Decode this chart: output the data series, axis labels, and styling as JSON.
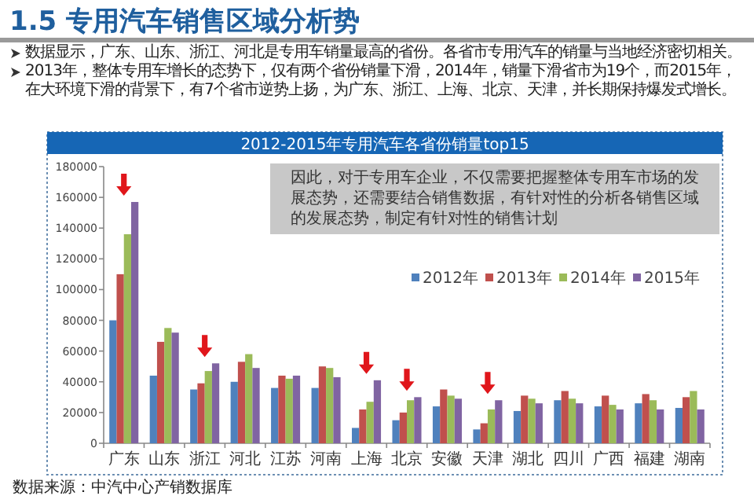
{
  "chart_data": {
    "type": "bar",
    "title": "1.5 专用汽车销售区域分析势",
    "subtitle": "2012-2015年专用汽车各省份销量top15",
    "annotations": [
      "数据显示，广东、山东、浙江、河北是专用车销量最高的省份。各省市专用汽车的销量与当地经济密切相关。",
      "2013年，整体专用车增长的态势下，仅有两个省份销量下滑，2014年，销量下滑省市为19个，而2015年，在大环境下滑的背景下，有7个省市逆势上扬，为广东、浙江、上海、北京、天津，并长期保持爆发式增长。",
      "因此，对于专用车企业，不仅需要把握整体专用车市场的发展态势，还需要结合销售数据，有针对性的分析各销售区域的发展态势，制定有针对性的销售计划",
      "数据来源：中汽中心产销数据库"
    ],
    "categories": [
      "广东",
      "山东",
      "浙江",
      "河北",
      "江苏",
      "河南",
      "上海",
      "北京",
      "安徽",
      "天津",
      "湖北",
      "四川",
      "广西",
      "福建",
      "湖南"
    ],
    "series": [
      {
        "name": "2012年",
        "color": "#4f81bd",
        "values": [
          80000,
          44000,
          35000,
          40000,
          36000,
          36000,
          10000,
          15000,
          24000,
          9000,
          21000,
          28000,
          24000,
          26000,
          23000
        ]
      },
      {
        "name": "2013年",
        "color": "#c0504d",
        "values": [
          110000,
          66000,
          39000,
          53000,
          44000,
          50000,
          22000,
          20000,
          35000,
          13000,
          31000,
          34000,
          31000,
          32000,
          30000
        ]
      },
      {
        "name": "2014年",
        "color": "#9bbb59",
        "values": [
          136000,
          75000,
          47000,
          58000,
          42000,
          49000,
          27000,
          28000,
          31000,
          22000,
          29000,
          29000,
          25000,
          28000,
          34000
        ]
      },
      {
        "name": "2015年",
        "color": "#8064a2",
        "values": [
          157000,
          72000,
          52000,
          49000,
          44000,
          43000,
          41000,
          30000,
          29000,
          28000,
          26000,
          26000,
          22000,
          22000,
          22000
        ]
      }
    ],
    "ylim": [
      0,
      180000
    ],
    "yticks": [
      0,
      20000,
      40000,
      60000,
      80000,
      100000,
      120000,
      140000,
      160000,
      180000
    ],
    "legend": "top right"
  }
}
